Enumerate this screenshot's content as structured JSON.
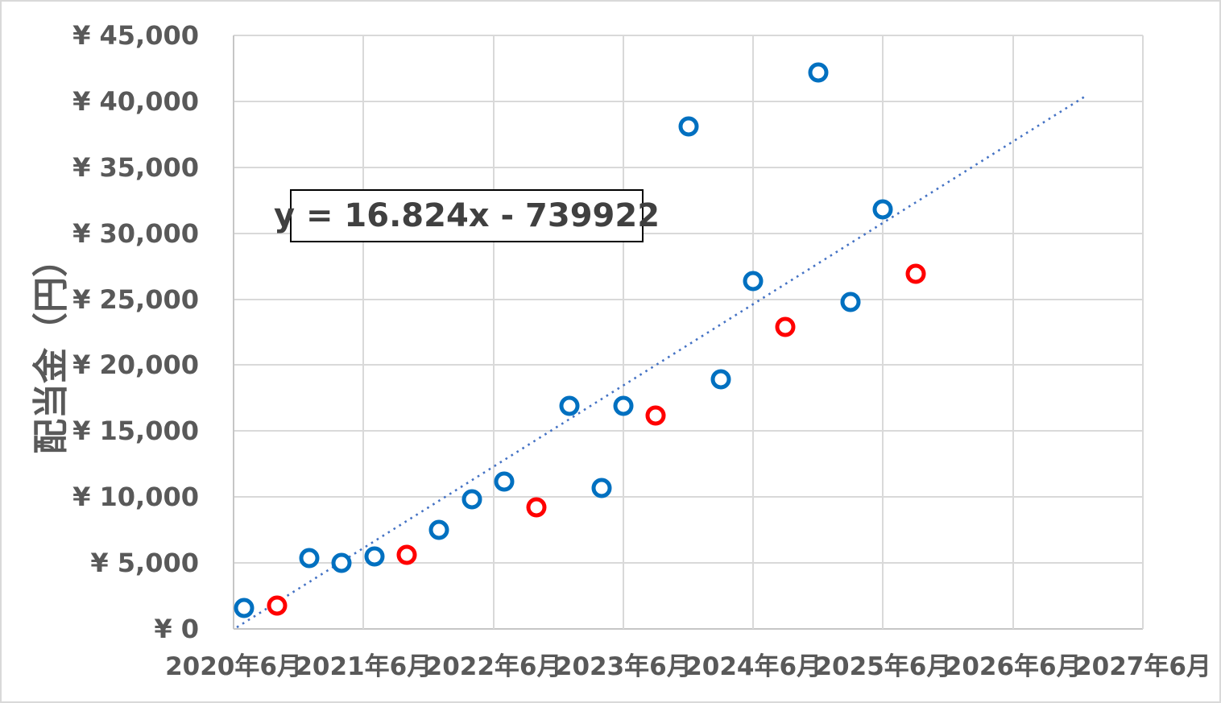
{
  "colors": {
    "series_blue": "#0070C0",
    "series_red": "#FF0000",
    "trendline": "#4472C4",
    "gridline": "#D9D9D9",
    "axis_line": "#C6C6C6",
    "tick_text": "#595959",
    "equation_text": "#404040",
    "equation_border": "#000000",
    "background": "#FFFFFF"
  },
  "chart_data": {
    "type": "scatter",
    "title": "",
    "xlabel": "",
    "ylabel": "配当金（円）",
    "grid": true,
    "legend": "none",
    "equation_label": "y = 16.824x - 739922",
    "x_axis": {
      "unit": "date (year/month)",
      "tick_labels": [
        "2020年6月",
        "2021年6月",
        "2022年6月",
        "2023年6月",
        "2024年6月",
        "2025年6月",
        "2026年6月",
        "2027年6月"
      ],
      "tick_months_from_start": [
        0,
        12,
        24,
        36,
        48,
        60,
        72,
        84
      ],
      "range_months": [
        0,
        84
      ]
    },
    "y_axis": {
      "unit": "yen",
      "range": [
        0,
        45000
      ],
      "tick_interval": 5000,
      "ticks": [
        {
          "value": 45000,
          "label": "¥ 45,000"
        },
        {
          "value": 40000,
          "label": "¥ 40,000"
        },
        {
          "value": 35000,
          "label": "¥ 35,000"
        },
        {
          "value": 30000,
          "label": "¥ 30,000"
        },
        {
          "value": 25000,
          "label": "¥ 25,000"
        },
        {
          "value": 20000,
          "label": "¥ 20,000"
        },
        {
          "value": 15000,
          "label": "¥ 15,000"
        },
        {
          "value": 10000,
          "label": "¥ 10,000"
        },
        {
          "value": 5000,
          "label": "¥ 5,000"
        },
        {
          "value": 0,
          "label": "¥ 0"
        }
      ]
    },
    "series": [
      {
        "name": "dividend-blue",
        "marker": "open-circle",
        "color_key": "series_blue",
        "points": [
          {
            "x": "2020-07",
            "month": 1,
            "yen": 1600
          },
          {
            "x": "2021-01",
            "month": 7,
            "yen": 5400
          },
          {
            "x": "2021-04",
            "month": 10,
            "yen": 5000
          },
          {
            "x": "2021-07",
            "month": 13,
            "yen": 5500
          },
          {
            "x": "2022-01",
            "month": 19,
            "yen": 7500
          },
          {
            "x": "2022-04",
            "month": 22,
            "yen": 9800
          },
          {
            "x": "2022-07",
            "month": 25,
            "yen": 11200
          },
          {
            "x": "2023-01",
            "month": 31,
            "yen": 16900
          },
          {
            "x": "2023-04",
            "month": 34,
            "yen": 10700
          },
          {
            "x": "2023-06",
            "month": 36,
            "yen": 16900
          },
          {
            "x": "2023-12",
            "month": 42,
            "yen": 38100
          },
          {
            "x": "2024-03",
            "month": 45,
            "yen": 18900
          },
          {
            "x": "2024-06",
            "month": 48,
            "yen": 26400
          },
          {
            "x": "2024-12",
            "month": 54,
            "yen": 42200
          },
          {
            "x": "2025-03",
            "month": 57,
            "yen": 24800
          },
          {
            "x": "2025-06",
            "month": 60,
            "yen": 31800
          }
        ]
      },
      {
        "name": "dividend-red",
        "marker": "open-circle",
        "color_key": "series_red",
        "points": [
          {
            "x": "2020-10",
            "month": 4,
            "yen": 1800
          },
          {
            "x": "2021-10",
            "month": 16,
            "yen": 5600
          },
          {
            "x": "2022-10",
            "month": 28,
            "yen": 9200
          },
          {
            "x": "2023-09",
            "month": 39,
            "yen": 16200
          },
          {
            "x": "2024-09",
            "month": 51,
            "yen": 22900
          },
          {
            "x": "2025-09",
            "month": 63,
            "yen": 26900
          }
        ]
      }
    ],
    "trendline": {
      "style": "dotted",
      "color_key": "trendline",
      "start": {
        "month": 0.3,
        "yen": 120
      },
      "end": {
        "month": 78.9,
        "yen": 40500
      }
    }
  }
}
